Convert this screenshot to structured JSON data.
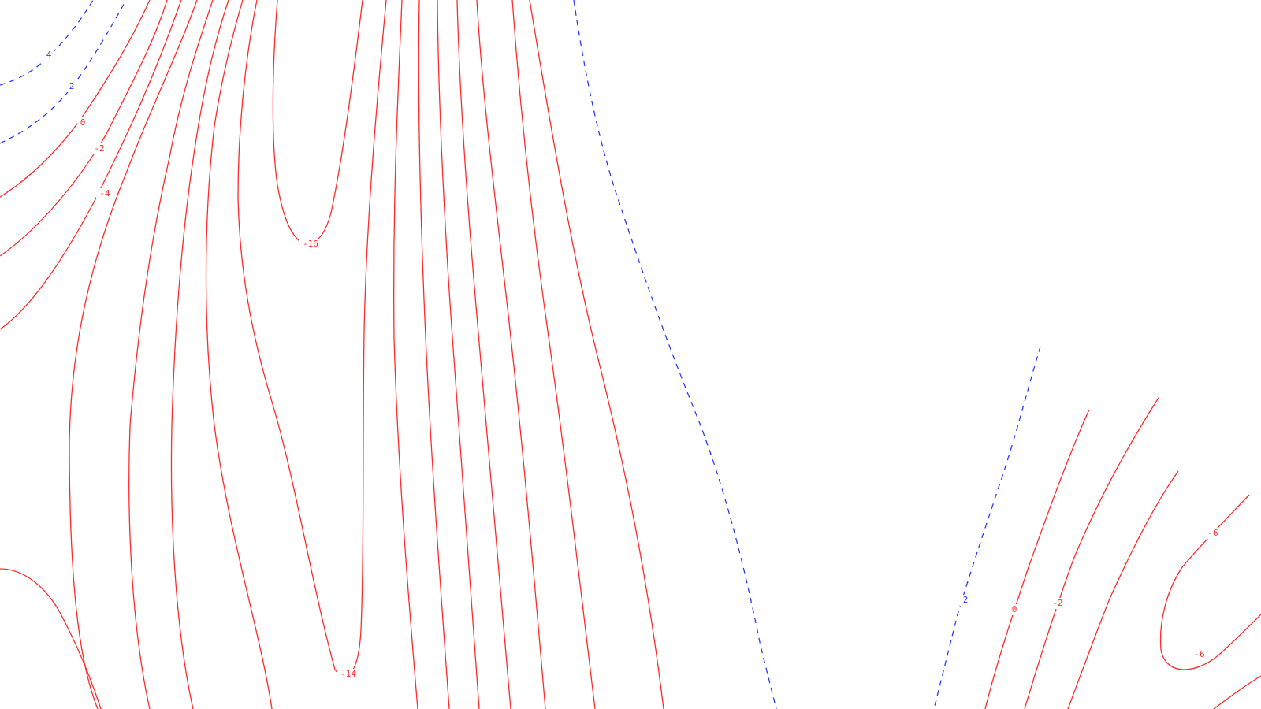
{
  "map": {
    "type": "contour",
    "colors": {
      "negative": "#ff2a2a",
      "positive": "#2a3cff",
      "background": "#ffffff"
    },
    "styles": {
      "negative": "solid",
      "positive": "dashed"
    },
    "labels": [
      {
        "id": "p4-left",
        "text": "4",
        "sign": "pos"
      },
      {
        "id": "p2-left",
        "text": "2",
        "sign": "pos"
      },
      {
        "id": "z0-left",
        "text": "0",
        "sign": "neg"
      },
      {
        "id": "m2-left",
        "text": "-2",
        "sign": "neg"
      },
      {
        "id": "m4-left",
        "text": "-4",
        "sign": "neg"
      },
      {
        "id": "m16",
        "text": "-16",
        "sign": "neg"
      },
      {
        "id": "m14",
        "text": "-14",
        "sign": "neg"
      },
      {
        "id": "p2-right",
        "text": "2",
        "sign": "pos"
      },
      {
        "id": "z0-right",
        "text": "0",
        "sign": "neg"
      },
      {
        "id": "m2-right",
        "text": "-2",
        "sign": "neg"
      },
      {
        "id": "m6-top",
        "text": "-6",
        "sign": "neg"
      },
      {
        "id": "m6-bottom",
        "text": "-6",
        "sign": "neg"
      }
    ]
  }
}
